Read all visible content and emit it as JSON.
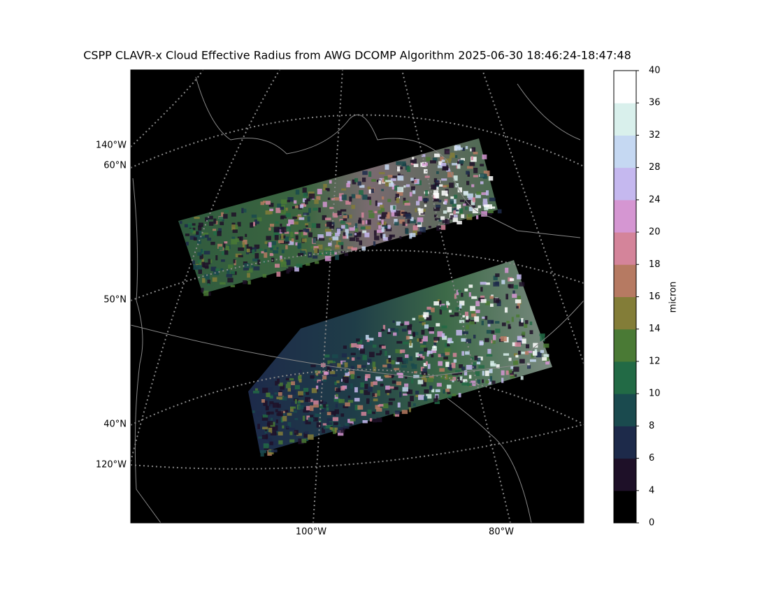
{
  "title": "CSPP CLAVR-x Cloud Effective Radius from AWG DCOMP Algorithm 2025-06-30 18:46:24-18:47:48",
  "map_labels": {
    "left": [
      "140°W",
      "60°N",
      "50°N",
      "40°N",
      "120°W"
    ],
    "bottom": [
      "100°W",
      "80°W"
    ]
  },
  "colorbar": {
    "label": "micron",
    "ticks": [
      0,
      4,
      6,
      8,
      10,
      12,
      14,
      16,
      18,
      20,
      24,
      28,
      32,
      36,
      40
    ],
    "colors": [
      "#000000",
      "#1e1028",
      "#1d2a4a",
      "#1a4a4e",
      "#226a45",
      "#4a7a35",
      "#837d38",
      "#b67a62",
      "#d4849a",
      "#d596d2",
      "#c5b8ef",
      "#c5d8f2",
      "#d9f0ec",
      "#ffffff"
    ]
  }
}
